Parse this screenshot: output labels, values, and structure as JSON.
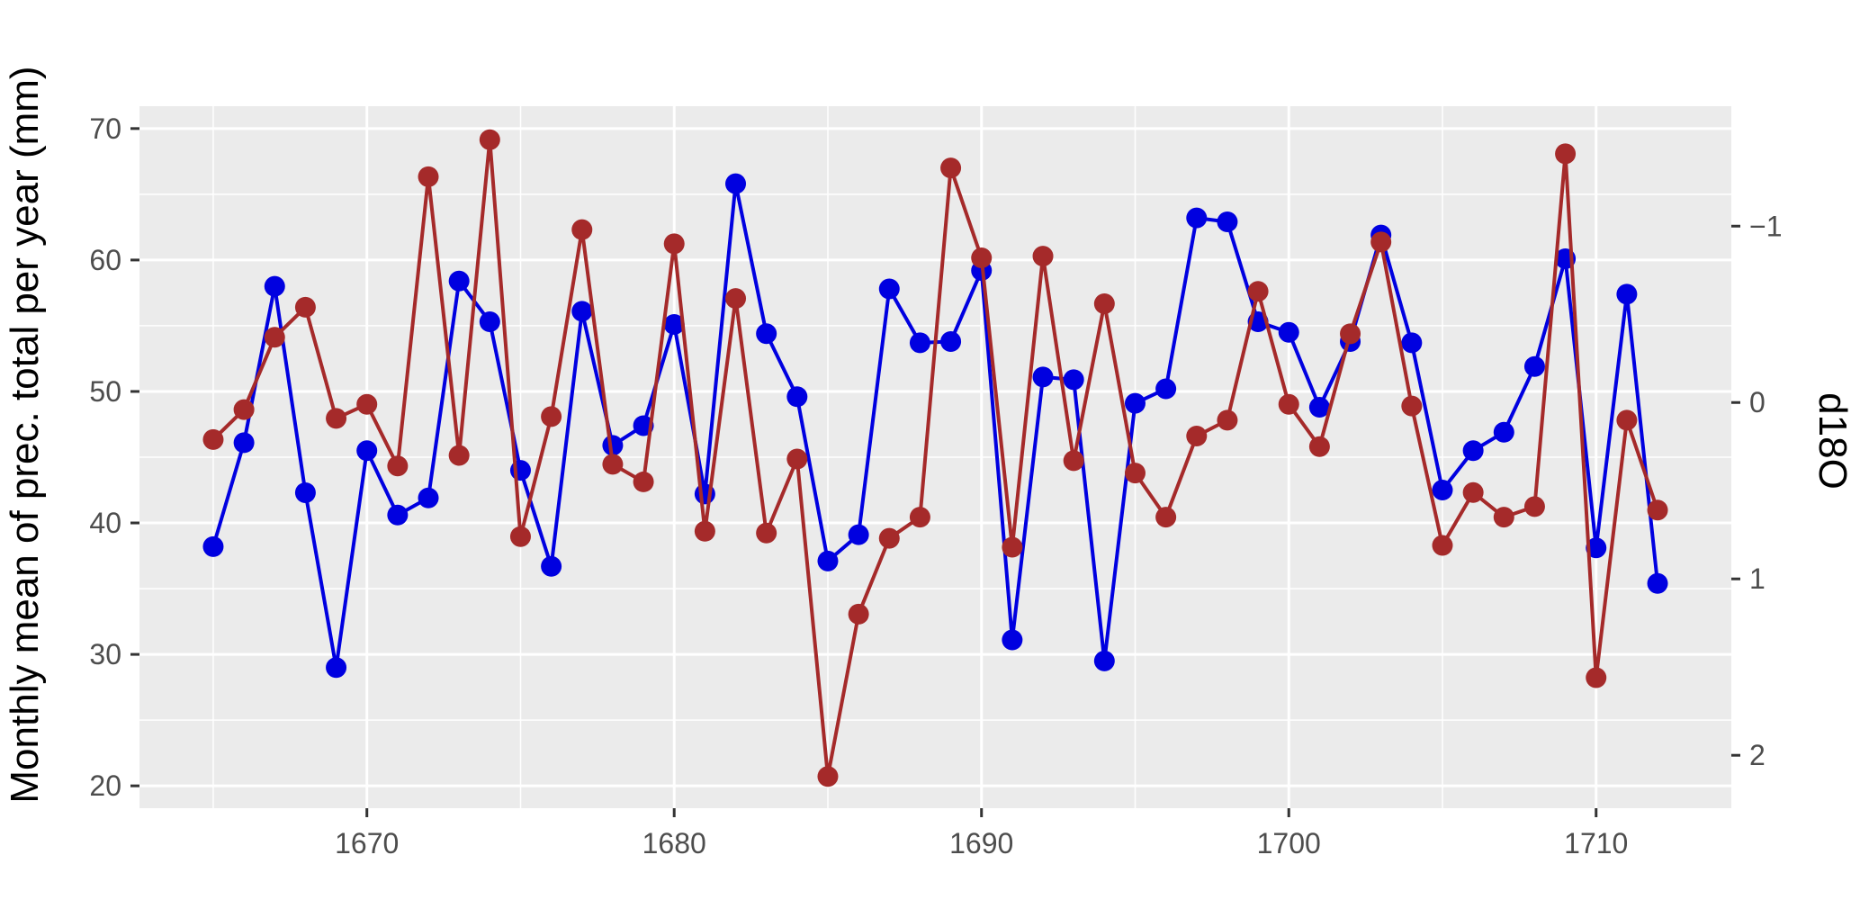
{
  "chart_data": {
    "type": "line",
    "title": "",
    "xlabel": "",
    "ylabel": "Monthly mean of prec. total per year (mm)",
    "y2label": "d18O",
    "xlim": [
      1662.6,
      1714.4
    ],
    "ylim": [
      18.3,
      71.7
    ],
    "y2lim": [
      2.3,
      -1.68
    ],
    "y2_reversed": true,
    "x_ticks": [
      1670,
      1680,
      1690,
      1700,
      1710
    ],
    "x_tick_labels": [
      "1670",
      "1680",
      "1690",
      "1700",
      "1710"
    ],
    "y_ticks": [
      20,
      30,
      40,
      50,
      60,
      70
    ],
    "y_tick_labels": [
      "20",
      "30",
      "40",
      "50",
      "60",
      "70"
    ],
    "y2_ticks": [
      -1,
      0,
      1,
      2
    ],
    "y2_tick_labels": [
      "−1",
      "0",
      "1",
      "2"
    ],
    "grid": true,
    "legend": "none",
    "colors": {
      "panel": "#ebebeb",
      "grid": "#ffffff",
      "precipitation": "#0000e0",
      "d18O": "#a52a2a"
    },
    "x": [
      1665,
      1666,
      1667,
      1668,
      1669,
      1670,
      1671,
      1672,
      1673,
      1674,
      1675,
      1676,
      1677,
      1678,
      1679,
      1680,
      1681,
      1682,
      1683,
      1684,
      1685,
      1686,
      1687,
      1688,
      1689,
      1690,
      1691,
      1692,
      1693,
      1694,
      1695,
      1696,
      1697,
      1698,
      1699,
      1700,
      1701,
      1702,
      1703,
      1704,
      1705,
      1706,
      1707,
      1708,
      1709,
      1710,
      1711,
      1712
    ],
    "series": [
      {
        "axis": "left",
        "color": "#0000e0",
        "values": [
          38.2,
          46.1,
          58.0,
          42.3,
          29.0,
          45.5,
          40.6,
          41.9,
          58.4,
          55.3,
          44.0,
          36.7,
          56.1,
          45.9,
          47.4,
          55.1,
          42.2,
          65.8,
          54.4,
          49.6,
          37.1,
          39.1,
          57.8,
          53.7,
          53.8,
          59.2,
          31.1,
          51.1,
          50.9,
          29.5,
          49.1,
          50.2,
          63.2,
          62.9,
          55.3,
          54.5,
          48.8,
          53.8,
          61.9,
          53.7,
          42.5,
          45.5,
          46.9,
          51.9,
          60.1,
          38.1,
          57.4,
          35.4
        ]
      },
      {
        "axis": "right",
        "color": "#a52a2a",
        "values": [
          0.21,
          0.04,
          -0.37,
          -0.54,
          0.09,
          0.01,
          0.36,
          -1.28,
          0.3,
          -1.49,
          0.76,
          0.08,
          -0.98,
          0.35,
          0.45,
          -0.9,
          0.73,
          -0.59,
          0.74,
          0.32,
          2.12,
          1.2,
          0.77,
          0.65,
          -1.33,
          -0.82,
          0.82,
          -0.83,
          0.33,
          -0.56,
          0.4,
          0.65,
          0.19,
          0.1,
          -0.63,
          0.01,
          0.25,
          -0.39,
          -0.91,
          0.02,
          0.81,
          0.51,
          0.65,
          0.59,
          -1.41,
          1.56,
          0.1,
          0.61
        ]
      }
    ]
  }
}
